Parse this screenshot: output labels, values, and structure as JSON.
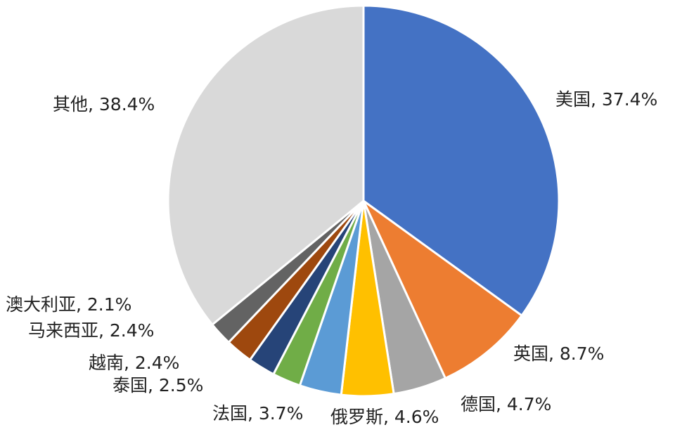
{
  "chart_data": {
    "type": "pie",
    "values": [
      37.4,
      8.7,
      4.7,
      4.6,
      3.7,
      2.5,
      2.4,
      2.4,
      2.1,
      38.4
    ],
    "value_labels": [
      "美国, 37.4%",
      "英国, 8.7%",
      "德国, 4.7%",
      "俄罗斯, 4.6%",
      "法国, 3.7%",
      "泰国, 2.5%",
      "越南, 2.4%",
      "马来西亚, 2.4%",
      "澳大利亚, 2.1%",
      "其他, 38.4%"
    ],
    "colors": [
      "#4472c4",
      "#ed7d31",
      "#a5a5a5",
      "#ffc000",
      "#5b9bd5",
      "#70ad47",
      "#264478",
      "#9e480e",
      "#636363",
      "#d9d9d9"
    ]
  }
}
